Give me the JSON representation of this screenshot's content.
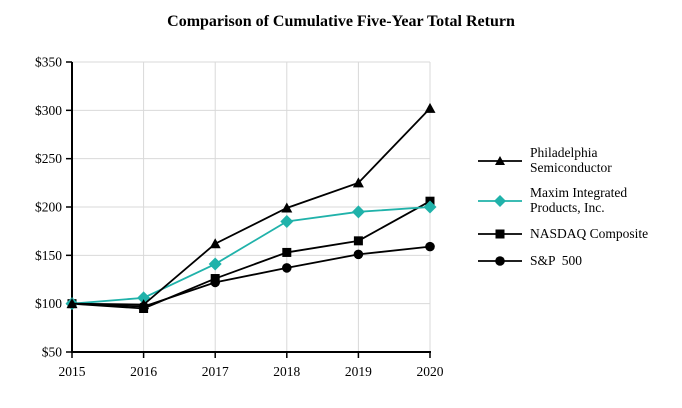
{
  "chart_data": {
    "type": "line",
    "title": "Comparison of Cumulative Five-Year Total Return",
    "xlabel": "",
    "ylabel": "",
    "categories": [
      "2015",
      "2016",
      "2017",
      "2018",
      "2019",
      "2020"
    ],
    "series": [
      {
        "name": "Philadelphia Semiconductor",
        "legend_lines": [
          "Philadelphia",
          "Semiconductor"
        ],
        "marker": "triangle",
        "color": "#000000",
        "values": [
          100,
          99,
          162,
          199,
          225,
          302
        ]
      },
      {
        "name": "Maxim Integrated Products, Inc.",
        "legend_lines": [
          "Maxim Integrated",
          "Products, Inc."
        ],
        "marker": "diamond",
        "color": "#20B2AA",
        "values": [
          100,
          106,
          141,
          185,
          195,
          200
        ]
      },
      {
        "name": "NASDAQ Composite",
        "legend_lines": [
          "NASDAQ Composite"
        ],
        "marker": "square",
        "color": "#000000",
        "values": [
          100,
          95,
          126,
          153,
          165,
          206
        ]
      },
      {
        "name": "S&P  500",
        "legend_lines": [
          "S&P  500"
        ],
        "marker": "circle",
        "color": "#000000",
        "values": [
          100,
          97,
          122,
          137,
          151,
          159
        ]
      }
    ],
    "ylim": [
      50,
      350
    ],
    "ytick_step": 50,
    "ytick_labels": [
      "$50",
      "$100",
      "$150",
      "$200",
      "$250",
      "$300",
      "$350"
    ],
    "grid": true,
    "legend_position": "right",
    "colors": {
      "axis": "#000000",
      "gridline": "#d9d9d9",
      "background": "#ffffff",
      "accent_teal": "#20B2AA"
    }
  }
}
